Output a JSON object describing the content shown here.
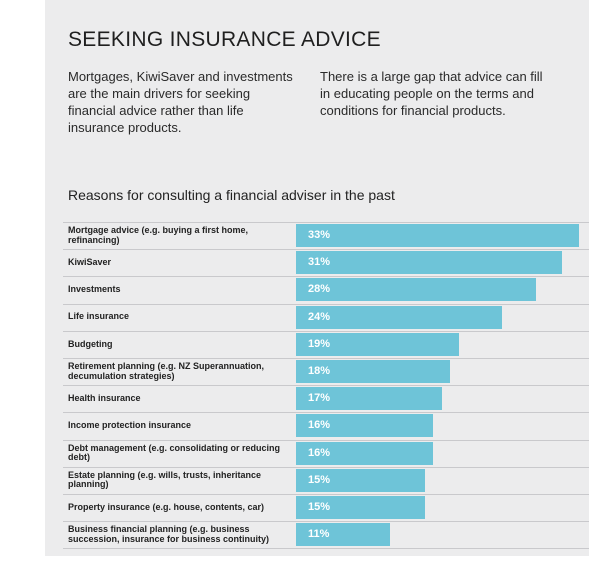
{
  "header": {
    "title": "SEEKING INSURANCE ADVICE",
    "intro_left": "Mortgages, KiwiSaver and investments are the main drivers for seeking financial advice rather than life insurance products.",
    "intro_right": "There is a large gap that advice can fill in educating people on the terms and conditions for financial products."
  },
  "chart_data": {
    "type": "bar",
    "orientation": "horizontal",
    "title": "Reasons for consulting a financial adviser in the past",
    "categories": [
      "Mortgage advice (e.g. buying a first home, refinancing)",
      "KiwiSaver",
      "Investments",
      "Life insurance",
      "Budgeting",
      "Retirement planning (e.g. NZ Superannuation, decumulation strategies)",
      "Health insurance",
      "Income protection insurance",
      "Debt management (e.g. consolidating or reducing debt)",
      "Estate planning (e.g. wills, trusts, inheritance planning)",
      "Property insurance (e.g. house, contents, car)",
      "Business financial planning (e.g. business succession, insurance for business continuity)"
    ],
    "values": [
      33,
      31,
      28,
      24,
      19,
      18,
      17,
      16,
      16,
      15,
      15,
      11
    ],
    "value_labels": [
      "33%",
      "31%",
      "28%",
      "24%",
      "19%",
      "18%",
      "17%",
      "16%",
      "16%",
      "15%",
      "15%",
      "11%"
    ],
    "unit": "%",
    "xlim": [
      0,
      33
    ],
    "grid": false,
    "legend": "none",
    "bar_color": "#6ec4d8"
  }
}
